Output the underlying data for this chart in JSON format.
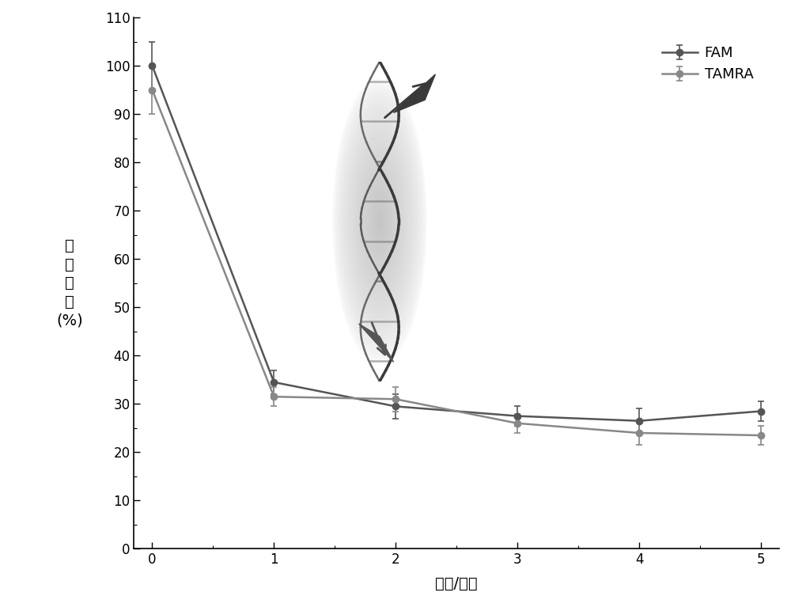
{
  "title": "",
  "xlabel": "时间/小时",
  "ylabel_chars": [
    "荧",
    "光",
    "强",
    "度",
    "(%)",
    ""
  ],
  "xlim": [
    -0.15,
    5.15
  ],
  "ylim": [
    0,
    110
  ],
  "xticks": [
    0,
    1,
    2,
    3,
    4,
    5
  ],
  "yticks": [
    0,
    10,
    20,
    30,
    40,
    50,
    60,
    70,
    80,
    90,
    100,
    110
  ],
  "FAM_x": [
    0,
    1,
    2,
    3,
    4,
    5
  ],
  "FAM_y": [
    100,
    34.5,
    29.5,
    27.5,
    26.5,
    28.5
  ],
  "FAM_err": [
    5,
    2.5,
    2.5,
    2.0,
    2.5,
    2.0
  ],
  "FAM_color": "#555555",
  "FAM_label": "FAM",
  "TAMRA_x": [
    0,
    1,
    2,
    3,
    4,
    5
  ],
  "TAMRA_y": [
    95,
    31.5,
    31.0,
    26.0,
    24.0,
    23.5
  ],
  "TAMRA_err": [
    5,
    2.0,
    2.5,
    2.0,
    2.5,
    2.0
  ],
  "TAMRA_color": "#888888",
  "TAMRA_label": "TAMRA",
  "bg_color": "#ffffff",
  "marker": "o",
  "marker_size": 6,
  "line_width": 1.8,
  "legend_fontsize": 13,
  "axis_fontsize": 14,
  "tick_fontsize": 12
}
